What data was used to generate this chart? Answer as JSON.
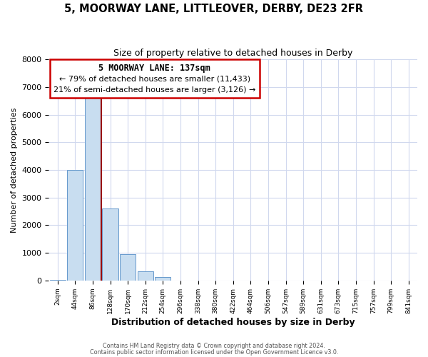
{
  "title": "5, MOORWAY LANE, LITTLEOVER, DERBY, DE23 2FR",
  "subtitle": "Size of property relative to detached houses in Derby",
  "xlabel": "Distribution of detached houses by size in Derby",
  "ylabel": "Number of detached properties",
  "bar_labels": [
    "2sqm",
    "44sqm",
    "86sqm",
    "128sqm",
    "170sqm",
    "212sqm",
    "254sqm",
    "296sqm",
    "338sqm",
    "380sqm",
    "422sqm",
    "464sqm",
    "506sqm",
    "547sqm",
    "589sqm",
    "631sqm",
    "673sqm",
    "715sqm",
    "757sqm",
    "799sqm",
    "841sqm"
  ],
  "bar_values": [
    10,
    4000,
    6600,
    2600,
    960,
    330,
    130,
    0,
    0,
    0,
    0,
    0,
    0,
    0,
    0,
    0,
    0,
    0,
    0,
    0,
    0
  ],
  "bar_color": "#c8ddf0",
  "bar_edgecolor": "#6699cc",
  "property_line_x": 3,
  "property_line_label": "5 MOORWAY LANE: 137sqm",
  "annotation_line1": "← 79% of detached houses are smaller (11,433)",
  "annotation_line2": "21% of semi-detached houses are larger (3,126) →",
  "vline_color": "#990000",
  "annotation_box_edgecolor": "#cc0000",
  "ylim": [
    0,
    8000
  ],
  "yticks": [
    0,
    1000,
    2000,
    3000,
    4000,
    5000,
    6000,
    7000,
    8000
  ],
  "footer_line1": "Contains HM Land Registry data © Crown copyright and database right 2024.",
  "footer_line2": "Contains public sector information licensed under the Open Government Licence v3.0.",
  "plot_bg_color": "#ffffff",
  "fig_bg_color": "#ffffff",
  "grid_color": "#d0d8ee"
}
